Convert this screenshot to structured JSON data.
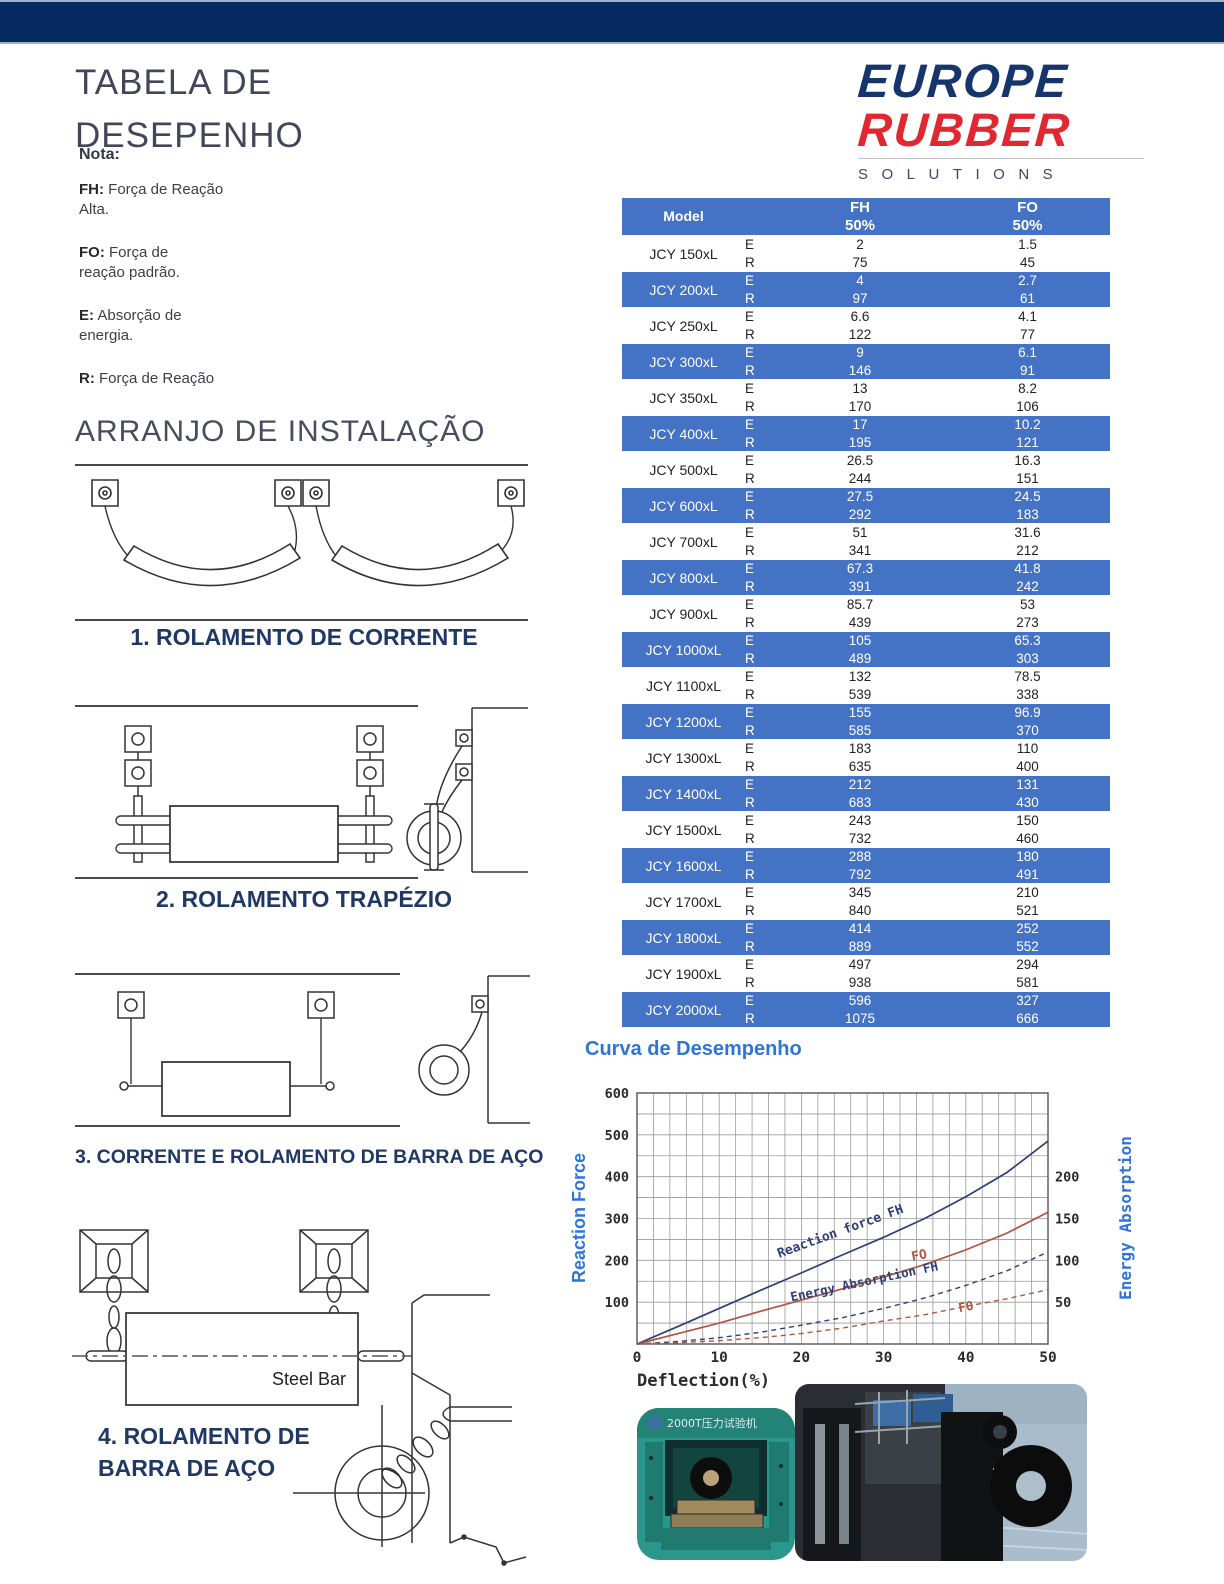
{
  "page": {
    "title": "TABELA DE DESEPENHO"
  },
  "notes": {
    "heading": "Nota:",
    "items": [
      {
        "term": "FH:",
        "text": "Força de Reação\nAlta."
      },
      {
        "term": "FO:",
        "text": "Força de\nreação padrão."
      },
      {
        "term": "E:",
        "text": "Absorção de\nenergia."
      },
      {
        "term": "R:",
        "text": "Força de Reação"
      }
    ]
  },
  "installation": {
    "heading": "ARRANJO DE INSTALAÇÃO",
    "captions": [
      "1. ROLAMENTO DE CORRENTE",
      "2. ROLAMENTO TRAPÉZIO",
      "3. CORRENTE E ROLAMENTO DE BARRA DE AÇO",
      "4. ROLAMENTO DE BARRA DE AÇO"
    ],
    "steel_bar_label": "Steel Bar"
  },
  "logo": {
    "line1": "EUROPE",
    "line2": "RUBBER",
    "line3": "SOLUTIONS"
  },
  "table": {
    "headers": {
      "model": "Model",
      "fh": "FH",
      "fo": "FO",
      "pct": "50%"
    },
    "row_labels": {
      "e": "E",
      "r": "R"
    },
    "rows": [
      {
        "model": "JCY 150xL",
        "fh_e": "2",
        "fh_r": "75",
        "fo_e": "1.5",
        "fo_r": "45",
        "band": false
      },
      {
        "model": "JCY 200xL",
        "fh_e": "4",
        "fh_r": "97",
        "fo_e": "2.7",
        "fo_r": "61",
        "band": true
      },
      {
        "model": "JCY 250xL",
        "fh_e": "6.6",
        "fh_r": "122",
        "fo_e": "4.1",
        "fo_r": "77",
        "band": false
      },
      {
        "model": "JCY 300xL",
        "fh_e": "9",
        "fh_r": "146",
        "fo_e": "6.1",
        "fo_r": "91",
        "band": true
      },
      {
        "model": "JCY 350xL",
        "fh_e": "13",
        "fh_r": "170",
        "fo_e": "8.2",
        "fo_r": "106",
        "band": false
      },
      {
        "model": "JCY 400xL",
        "fh_e": "17",
        "fh_r": "195",
        "fo_e": "10.2",
        "fo_r": "121",
        "band": true
      },
      {
        "model": "JCY 500xL",
        "fh_e": "26.5",
        "fh_r": "244",
        "fo_e": "16.3",
        "fo_r": "151",
        "band": false
      },
      {
        "model": "JCY 600xL",
        "fh_e": "27.5",
        "fh_r": "292",
        "fo_e": "24.5",
        "fo_r": "183",
        "band": true
      },
      {
        "model": "JCY 700xL",
        "fh_e": "51",
        "fh_r": "341",
        "fo_e": "31.6",
        "fo_r": "212",
        "band": false
      },
      {
        "model": "JCY 800xL",
        "fh_e": "67.3",
        "fh_r": "391",
        "fo_e": "41.8",
        "fo_r": "242",
        "band": true
      },
      {
        "model": "JCY 900xL",
        "fh_e": "85.7",
        "fh_r": "439",
        "fo_e": "53",
        "fo_r": "273",
        "band": false
      },
      {
        "model": "JCY 1000xL",
        "fh_e": "105",
        "fh_r": "489",
        "fo_e": "65.3",
        "fo_r": "303",
        "band": true
      },
      {
        "model": "JCY 1100xL",
        "fh_e": "132",
        "fh_r": "539",
        "fo_e": "78.5",
        "fo_r": "338",
        "band": false
      },
      {
        "model": "JCY 1200xL",
        "fh_e": "155",
        "fh_r": "585",
        "fo_e": "96.9",
        "fo_r": "370",
        "band": true
      },
      {
        "model": "JCY 1300xL",
        "fh_e": "183",
        "fh_r": "635",
        "fo_e": "110",
        "fo_r": "400",
        "band": false
      },
      {
        "model": "JCY 1400xL",
        "fh_e": "212",
        "fh_r": "683",
        "fo_e": "131",
        "fo_r": "430",
        "band": true
      },
      {
        "model": "JCY 1500xL",
        "fh_e": "243",
        "fh_r": "732",
        "fo_e": "150",
        "fo_r": "460",
        "band": false
      },
      {
        "model": "JCY 1600xL",
        "fh_e": "288",
        "fh_r": "792",
        "fo_e": "180",
        "fo_r": "491",
        "band": true
      },
      {
        "model": "JCY 1700xL",
        "fh_e": "345",
        "fh_r": "840",
        "fo_e": "210",
        "fo_r": "521",
        "band": false
      },
      {
        "model": "JCY 1800xL",
        "fh_e": "414",
        "fh_r": "889",
        "fo_e": "252",
        "fo_r": "552",
        "band": true
      },
      {
        "model": "JCY 1900xL",
        "fh_e": "497",
        "fh_r": "938",
        "fo_e": "294",
        "fo_r": "581",
        "band": false
      },
      {
        "model": "JCY 2000xL",
        "fh_e": "596",
        "fh_r": "1075",
        "fo_e": "327",
        "fo_r": "666",
        "band": true
      }
    ]
  },
  "chart": {
    "title": "Curva de Desempenho"
  },
  "chart_data": {
    "type": "line",
    "title": "Curva de Desempenho",
    "xlabel": "Deflection(%)",
    "ylabel_left": "Reaction Force",
    "ylabel_right": "Energy Absorption",
    "xlim": [
      0,
      50
    ],
    "ylim_left": [
      0,
      600
    ],
    "ylim_right": [
      0,
      300
    ],
    "x_ticks": [
      0,
      10,
      20,
      30,
      40,
      50
    ],
    "y_ticks_left": [
      100,
      200,
      300,
      400,
      500,
      600
    ],
    "y_ticks_right": [
      50,
      100,
      150,
      200
    ],
    "grid": true,
    "legend_position": "inline-labels",
    "series": [
      {
        "name": "Reaction force FH",
        "axis": "left",
        "style": "solid",
        "color": "#2d3f76",
        "x": [
          0,
          5,
          10,
          15,
          20,
          25,
          30,
          35,
          40,
          45,
          50
        ],
        "y": [
          0,
          42,
          85,
          128,
          170,
          213,
          255,
          300,
          352,
          410,
          485
        ]
      },
      {
        "name": "Reaction force FO",
        "axis": "left",
        "style": "solid",
        "color": "#b2543e",
        "x": [
          0,
          5,
          10,
          15,
          20,
          25,
          30,
          35,
          40,
          45,
          50
        ],
        "y": [
          0,
          25,
          50,
          78,
          105,
          132,
          160,
          190,
          225,
          265,
          315
        ]
      },
      {
        "name": "Energy Absorption FH",
        "axis": "left",
        "style": "dashed",
        "color": "#2d3f76",
        "x": [
          0,
          5,
          10,
          15,
          20,
          25,
          30,
          35,
          40,
          45,
          50
        ],
        "y": [
          0,
          6,
          15,
          28,
          45,
          63,
          85,
          110,
          140,
          175,
          220
        ]
      },
      {
        "name": "Energy Absorption FO",
        "axis": "left",
        "style": "dashed",
        "color": "#b2543e",
        "x": [
          0,
          5,
          10,
          15,
          20,
          25,
          30,
          35,
          40,
          45,
          50
        ],
        "y": [
          0,
          3,
          8,
          15,
          25,
          38,
          55,
          70,
          90,
          108,
          130
        ]
      }
    ],
    "annotations": [
      {
        "text": "Reaction force FH",
        "x": 17.3,
        "y": 206,
        "angle": -20,
        "color": "#2d3f76",
        "size": 13
      },
      {
        "text": "FO",
        "x": 33.5,
        "y": 198,
        "angle": -12,
        "color": "#b2543e",
        "size": 13
      },
      {
        "text": "Energy Absorption FH",
        "x": 18.8,
        "y": 102,
        "angle": -12,
        "color": "#2d3f76",
        "size": 12.5
      },
      {
        "text": "FO",
        "x": 39.2,
        "y": 76,
        "angle": -10,
        "color": "#b2543e",
        "size": 12.5
      }
    ]
  },
  "photos": {
    "machine_label": "2000T压力试验机"
  },
  "colors": {
    "topbar": "#042a5f",
    "table_band": "#4472c4",
    "caption_navy": "#1f3864",
    "chart_title_blue": "#2e74d9",
    "logo_blue": "#17356d",
    "logo_red": "#e12730",
    "curve_navy": "#2d3f76",
    "curve_red": "#b2543e"
  }
}
